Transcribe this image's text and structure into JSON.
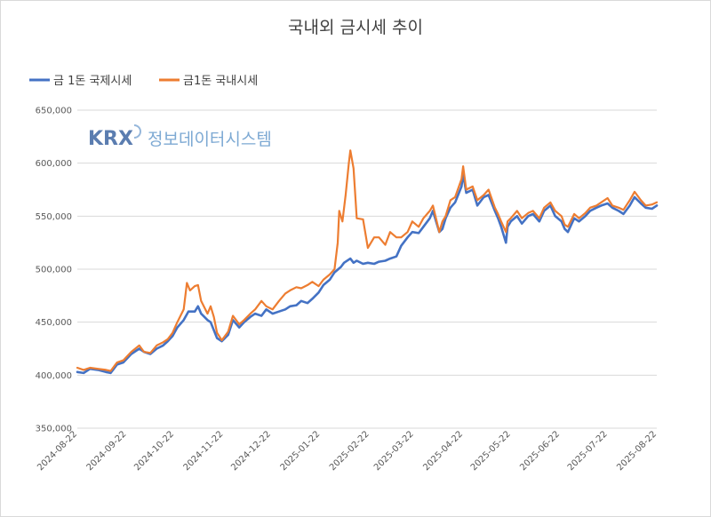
{
  "chart_data": {
    "type": "line",
    "title": "국내외 금시세 추이",
    "watermark": {
      "brand": "KRX",
      "text": "정보데이터시스템"
    },
    "ylim": [
      350000,
      650000
    ],
    "yticks": [
      "350,000",
      "400,000",
      "450,000",
      "500,000",
      "550,000",
      "600,000",
      "650,000"
    ],
    "ytick_values": [
      350000,
      400000,
      450000,
      500000,
      550000,
      600000,
      650000
    ],
    "x_range": [
      "2024-08-22",
      "2025-08-22"
    ],
    "xticks": [
      "2024-08-22",
      "2024-09-22",
      "2024-10-22",
      "2024-11-22",
      "2024-12-22",
      "2025-01-22",
      "2025-02-22",
      "2025-03-22",
      "2025-04-22",
      "2025-05-22",
      "2025-06-22",
      "2025-07-22",
      "2025-08-22"
    ],
    "legend_position": "top-left",
    "grid": "horizontal",
    "colors": {
      "intl": "#4472c4",
      "dom": "#ed7d31",
      "grid": "#d9d9d9"
    },
    "series": [
      {
        "name": "금 1돈 국제시세",
        "color": "#4472c4",
        "points": [
          [
            "2024-08-22",
            403000
          ],
          [
            "2024-08-26",
            402000
          ],
          [
            "2024-08-30",
            406000
          ],
          [
            "2024-09-04",
            405000
          ],
          [
            "2024-09-09",
            403000
          ],
          [
            "2024-09-12",
            402000
          ],
          [
            "2024-09-16",
            410000
          ],
          [
            "2024-09-20",
            412000
          ],
          [
            "2024-09-25",
            420000
          ],
          [
            "2024-09-30",
            425000
          ],
          [
            "2024-10-03",
            422000
          ],
          [
            "2024-10-07",
            420000
          ],
          [
            "2024-10-11",
            425000
          ],
          [
            "2024-10-15",
            428000
          ],
          [
            "2024-10-18",
            432000
          ],
          [
            "2024-10-21",
            437000
          ],
          [
            "2024-10-24",
            445000
          ],
          [
            "2024-10-28",
            452000
          ],
          [
            "2024-10-31",
            460000
          ],
          [
            "2024-11-04",
            460000
          ],
          [
            "2024-11-06",
            465000
          ],
          [
            "2024-11-08",
            458000
          ],
          [
            "2024-11-12",
            452000
          ],
          [
            "2024-11-14",
            450000
          ],
          [
            "2024-11-18",
            435000
          ],
          [
            "2024-11-21",
            432000
          ],
          [
            "2024-11-25",
            438000
          ],
          [
            "2024-11-28",
            452000
          ],
          [
            "2024-12-02",
            445000
          ],
          [
            "2024-12-05",
            450000
          ],
          [
            "2024-12-09",
            455000
          ],
          [
            "2024-12-12",
            458000
          ],
          [
            "2024-12-16",
            456000
          ],
          [
            "2024-12-19",
            462000
          ],
          [
            "2024-12-23",
            458000
          ],
          [
            "2024-12-27",
            460000
          ],
          [
            "2024-12-31",
            462000
          ],
          [
            "2025-01-03",
            465000
          ],
          [
            "2025-01-07",
            466000
          ],
          [
            "2025-01-10",
            470000
          ],
          [
            "2025-01-14",
            468000
          ],
          [
            "2025-01-17",
            472000
          ],
          [
            "2025-01-21",
            478000
          ],
          [
            "2025-01-24",
            485000
          ],
          [
            "2025-01-28",
            490000
          ],
          [
            "2025-01-31",
            497000
          ],
          [
            "2025-02-04",
            502000
          ],
          [
            "2025-02-06",
            506000
          ],
          [
            "2025-02-10",
            510000
          ],
          [
            "2025-02-12",
            506000
          ],
          [
            "2025-02-14",
            508000
          ],
          [
            "2025-02-18",
            505000
          ],
          [
            "2025-02-21",
            506000
          ],
          [
            "2025-02-25",
            505000
          ],
          [
            "2025-02-28",
            507000
          ],
          [
            "2025-03-04",
            508000
          ],
          [
            "2025-03-07",
            510000
          ],
          [
            "2025-03-11",
            512000
          ],
          [
            "2025-03-14",
            522000
          ],
          [
            "2025-03-18",
            530000
          ],
          [
            "2025-03-21",
            535000
          ],
          [
            "2025-03-25",
            534000
          ],
          [
            "2025-03-28",
            540000
          ],
          [
            "2025-04-01",
            548000
          ],
          [
            "2025-04-03",
            555000
          ],
          [
            "2025-04-07",
            535000
          ],
          [
            "2025-04-09",
            538000
          ],
          [
            "2025-04-11",
            548000
          ],
          [
            "2025-04-14",
            558000
          ],
          [
            "2025-04-17",
            563000
          ],
          [
            "2025-04-21",
            578000
          ],
          [
            "2025-04-22",
            590000
          ],
          [
            "2025-04-24",
            572000
          ],
          [
            "2025-04-28",
            575000
          ],
          [
            "2025-05-01",
            560000
          ],
          [
            "2025-05-05",
            568000
          ],
          [
            "2025-05-08",
            570000
          ],
          [
            "2025-05-12",
            555000
          ],
          [
            "2025-05-14",
            548000
          ],
          [
            "2025-05-16",
            540000
          ],
          [
            "2025-05-19",
            525000
          ],
          [
            "2025-05-20",
            540000
          ],
          [
            "2025-05-22",
            545000
          ],
          [
            "2025-05-26",
            550000
          ],
          [
            "2025-05-29",
            543000
          ],
          [
            "2025-06-02",
            550000
          ],
          [
            "2025-06-05",
            552000
          ],
          [
            "2025-06-09",
            545000
          ],
          [
            "2025-06-12",
            555000
          ],
          [
            "2025-06-16",
            560000
          ],
          [
            "2025-06-19",
            550000
          ],
          [
            "2025-06-23",
            545000
          ],
          [
            "2025-06-25",
            538000
          ],
          [
            "2025-06-27",
            535000
          ],
          [
            "2025-07-01",
            548000
          ],
          [
            "2025-07-04",
            545000
          ],
          [
            "2025-07-08",
            550000
          ],
          [
            "2025-07-11",
            555000
          ],
          [
            "2025-07-15",
            558000
          ],
          [
            "2025-07-18",
            560000
          ],
          [
            "2025-07-22",
            562000
          ],
          [
            "2025-07-25",
            558000
          ],
          [
            "2025-07-29",
            555000
          ],
          [
            "2025-08-01",
            552000
          ],
          [
            "2025-08-05",
            560000
          ],
          [
            "2025-08-08",
            568000
          ],
          [
            "2025-08-12",
            562000
          ],
          [
            "2025-08-15",
            558000
          ],
          [
            "2025-08-19",
            557000
          ],
          [
            "2025-08-22",
            560000
          ]
        ]
      },
      {
        "name": "금1돈 국내시세",
        "color": "#ed7d31",
        "points": [
          [
            "2024-08-22",
            407000
          ],
          [
            "2024-08-26",
            405000
          ],
          [
            "2024-08-30",
            407000
          ],
          [
            "2024-09-04",
            406000
          ],
          [
            "2024-09-09",
            405000
          ],
          [
            "2024-09-12",
            404000
          ],
          [
            "2024-09-16",
            412000
          ],
          [
            "2024-09-20",
            414000
          ],
          [
            "2024-09-25",
            422000
          ],
          [
            "2024-09-30",
            428000
          ],
          [
            "2024-10-03",
            422000
          ],
          [
            "2024-10-07",
            421000
          ],
          [
            "2024-10-11",
            428000
          ],
          [
            "2024-10-15",
            431000
          ],
          [
            "2024-10-18",
            434000
          ],
          [
            "2024-10-21",
            440000
          ],
          [
            "2024-10-24",
            450000
          ],
          [
            "2024-10-28",
            462000
          ],
          [
            "2024-10-30",
            487000
          ],
          [
            "2024-11-01",
            480000
          ],
          [
            "2024-11-04",
            484000
          ],
          [
            "2024-11-06",
            485000
          ],
          [
            "2024-11-08",
            470000
          ],
          [
            "2024-11-12",
            458000
          ],
          [
            "2024-11-14",
            465000
          ],
          [
            "2024-11-16",
            455000
          ],
          [
            "2024-11-18",
            440000
          ],
          [
            "2024-11-21",
            433000
          ],
          [
            "2024-11-25",
            441000
          ],
          [
            "2024-11-28",
            456000
          ],
          [
            "2024-12-02",
            448000
          ],
          [
            "2024-12-05",
            452000
          ],
          [
            "2024-12-09",
            458000
          ],
          [
            "2024-12-12",
            462000
          ],
          [
            "2024-12-16",
            470000
          ],
          [
            "2024-12-19",
            465000
          ],
          [
            "2024-12-23",
            462000
          ],
          [
            "2024-12-27",
            470000
          ],
          [
            "2024-12-31",
            477000
          ],
          [
            "2025-01-03",
            480000
          ],
          [
            "2025-01-07",
            483000
          ],
          [
            "2025-01-10",
            482000
          ],
          [
            "2025-01-14",
            485000
          ],
          [
            "2025-01-17",
            488000
          ],
          [
            "2025-01-21",
            484000
          ],
          [
            "2025-01-24",
            490000
          ],
          [
            "2025-01-28",
            495000
          ],
          [
            "2025-01-31",
            500000
          ],
          [
            "2025-02-02",
            525000
          ],
          [
            "2025-02-03",
            555000
          ],
          [
            "2025-02-05",
            545000
          ],
          [
            "2025-02-07",
            570000
          ],
          [
            "2025-02-09",
            600000
          ],
          [
            "2025-02-10",
            612000
          ],
          [
            "2025-02-12",
            595000
          ],
          [
            "2025-02-14",
            548000
          ],
          [
            "2025-02-18",
            547000
          ],
          [
            "2025-02-21",
            520000
          ],
          [
            "2025-02-25",
            530000
          ],
          [
            "2025-02-28",
            530000
          ],
          [
            "2025-03-04",
            523000
          ],
          [
            "2025-03-07",
            535000
          ],
          [
            "2025-03-11",
            530000
          ],
          [
            "2025-03-14",
            530000
          ],
          [
            "2025-03-18",
            535000
          ],
          [
            "2025-03-21",
            545000
          ],
          [
            "2025-03-25",
            540000
          ],
          [
            "2025-03-28",
            548000
          ],
          [
            "2025-04-01",
            555000
          ],
          [
            "2025-04-03",
            560000
          ],
          [
            "2025-04-07",
            535000
          ],
          [
            "2025-04-09",
            545000
          ],
          [
            "2025-04-11",
            550000
          ],
          [
            "2025-04-14",
            565000
          ],
          [
            "2025-04-17",
            568000
          ],
          [
            "2025-04-21",
            585000
          ],
          [
            "2025-04-22",
            597000
          ],
          [
            "2025-04-24",
            575000
          ],
          [
            "2025-04-28",
            578000
          ],
          [
            "2025-05-01",
            565000
          ],
          [
            "2025-05-05",
            570000
          ],
          [
            "2025-05-08",
            575000
          ],
          [
            "2025-05-12",
            558000
          ],
          [
            "2025-05-14",
            552000
          ],
          [
            "2025-05-16",
            545000
          ],
          [
            "2025-05-19",
            535000
          ],
          [
            "2025-05-20",
            545000
          ],
          [
            "2025-05-22",
            548000
          ],
          [
            "2025-05-26",
            555000
          ],
          [
            "2025-05-29",
            548000
          ],
          [
            "2025-06-02",
            553000
          ],
          [
            "2025-06-05",
            555000
          ],
          [
            "2025-06-09",
            548000
          ],
          [
            "2025-06-12",
            558000
          ],
          [
            "2025-06-16",
            563000
          ],
          [
            "2025-06-19",
            555000
          ],
          [
            "2025-06-23",
            550000
          ],
          [
            "2025-06-25",
            542000
          ],
          [
            "2025-06-27",
            540000
          ],
          [
            "2025-07-01",
            552000
          ],
          [
            "2025-07-04",
            548000
          ],
          [
            "2025-07-08",
            553000
          ],
          [
            "2025-07-11",
            558000
          ],
          [
            "2025-07-15",
            560000
          ],
          [
            "2025-07-18",
            563000
          ],
          [
            "2025-07-22",
            567000
          ],
          [
            "2025-07-25",
            560000
          ],
          [
            "2025-07-29",
            558000
          ],
          [
            "2025-08-01",
            556000
          ],
          [
            "2025-08-05",
            565000
          ],
          [
            "2025-08-08",
            573000
          ],
          [
            "2025-08-12",
            565000
          ],
          [
            "2025-08-15",
            560000
          ],
          [
            "2025-08-19",
            561000
          ],
          [
            "2025-08-22",
            563000
          ]
        ]
      }
    ]
  }
}
